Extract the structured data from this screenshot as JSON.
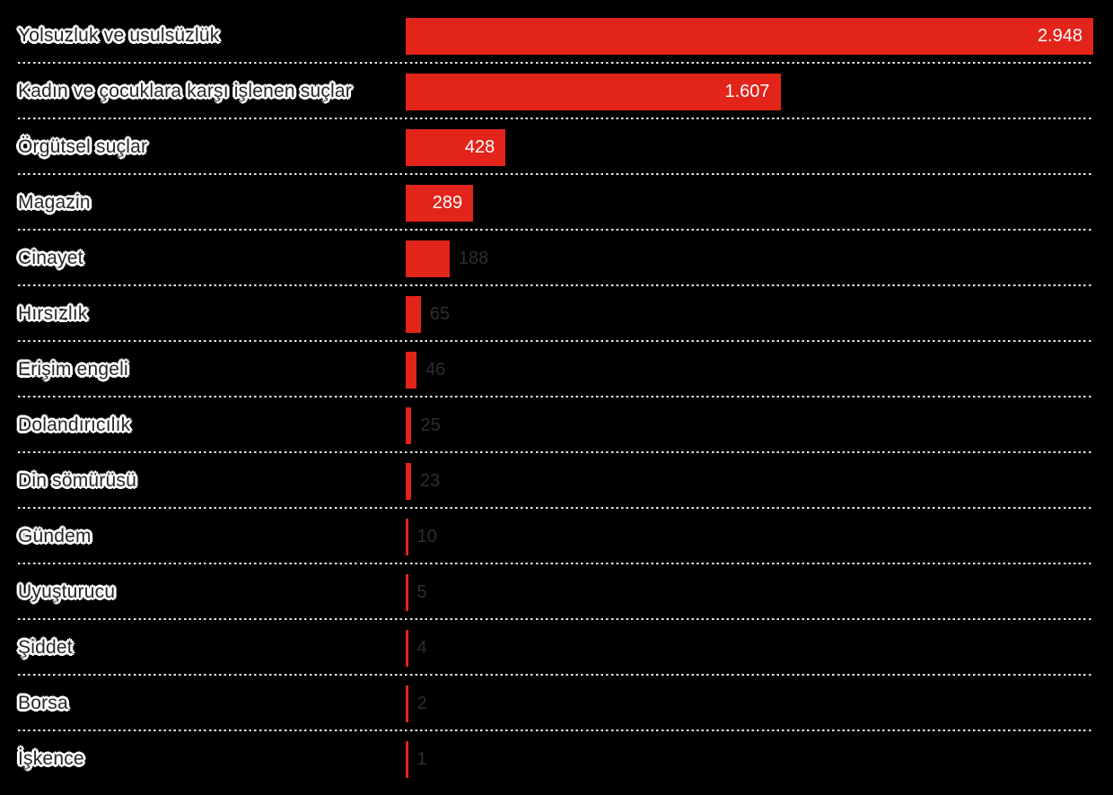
{
  "chart_data": {
    "type": "bar",
    "orientation": "horizontal",
    "title": "",
    "xlabel": "",
    "ylabel": "",
    "xlim": [
      0,
      2948
    ],
    "legend": "none",
    "grid": "dotted white row separators between categories",
    "categories": [
      "Yolsuzluk ve usulsüzlük",
      "Kadın ve çocuklara karşı işlenen suçlar",
      "Örgütsel suçlar",
      "Magazin",
      "Cinayet",
      "Hırsızlık",
      "Erişim engeli",
      "Dolandırıcılık",
      "Din sömürüsü",
      "Gündem",
      "Uyuşturucu",
      "Şiddet",
      "Borsa",
      "İşkence"
    ],
    "values": [
      2948,
      1607,
      428,
      289,
      188,
      65,
      46,
      25,
      23,
      10,
      5,
      4,
      2,
      1
    ],
    "value_labels": [
      "2.948",
      "1.607",
      "428",
      "289",
      "188",
      "65",
      "46",
      "25",
      "23",
      "10",
      "5",
      "4",
      "2",
      "1"
    ]
  },
  "colors": {
    "background": "#000000",
    "bar": "#e2241a",
    "value_inside_text": "#ffffff",
    "value_outside_text": "#2e2e2e",
    "category_text": "#262626",
    "category_halo": "#ffffff",
    "separator_dots": "#e8e8e8"
  }
}
